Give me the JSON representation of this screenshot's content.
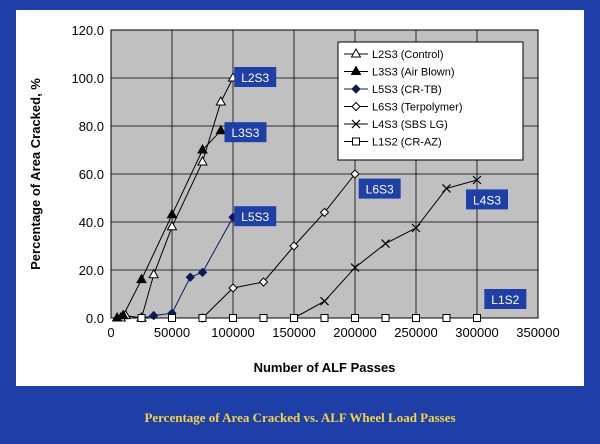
{
  "caption": "Percentage of Area Cracked vs. ALF Wheel Load Passes",
  "chart_data": {
    "type": "line",
    "xlabel": "Number of ALF Passes",
    "ylabel": "Percentage of Area Cracked, %",
    "xlim": [
      0,
      350000
    ],
    "ylim": [
      0,
      120
    ],
    "x_ticks": [
      "0",
      "50000",
      "100000",
      "150000",
      "200000",
      "250000",
      "300000",
      "350000"
    ],
    "y_ticks": [
      "0.0",
      "20.0",
      "40.0",
      "60.0",
      "80.0",
      "100.0",
      "120.0"
    ],
    "grid": true,
    "legend_position": "top-right",
    "plot_background": "#c0c0c0",
    "series": [
      {
        "name": "L2S3 (Control)",
        "marker": "triangle-open",
        "label": "L2S3",
        "points": [
          [
            8000,
            0
          ],
          [
            12000,
            1
          ],
          [
            25000,
            0
          ],
          [
            35000,
            18
          ],
          [
            50000,
            38
          ],
          [
            75000,
            65
          ],
          [
            90000,
            90
          ],
          [
            100000,
            100
          ]
        ]
      },
      {
        "name": "L3S3 (Air Blown)",
        "marker": "triangle-filled",
        "label": "L3S3",
        "points": [
          [
            5000,
            0
          ],
          [
            10000,
            1
          ],
          [
            25000,
            16
          ],
          [
            50000,
            43
          ],
          [
            75000,
            70
          ],
          [
            90000,
            78
          ]
        ]
      },
      {
        "name": "L5S3 (CR-TB)",
        "marker": "diamond-filled",
        "label": "L5S3",
        "points": [
          [
            25000,
            0
          ],
          [
            35000,
            1
          ],
          [
            50000,
            2
          ],
          [
            65000,
            17
          ],
          [
            75000,
            19
          ],
          [
            100000,
            42
          ]
        ]
      },
      {
        "name": "L6S3 (Terpolymer)",
        "marker": "diamond-open",
        "label": "L6S3",
        "points": [
          [
            75000,
            0
          ],
          [
            100000,
            12.5
          ],
          [
            125000,
            15
          ],
          [
            150000,
            30
          ],
          [
            175000,
            44
          ],
          [
            200000,
            60
          ]
        ]
      },
      {
        "name": "L4S3 (SBS LG)",
        "marker": "cross",
        "label": "L4S3",
        "points": [
          [
            150000,
            0
          ],
          [
            175000,
            7
          ],
          [
            200000,
            21
          ],
          [
            225000,
            31
          ],
          [
            250000,
            37.5
          ],
          [
            275000,
            54
          ],
          [
            300000,
            57.5
          ]
        ]
      },
      {
        "name": "L1S2 (CR-AZ)",
        "marker": "square-open",
        "label": "L1S2",
        "points": [
          [
            25000,
            0
          ],
          [
            50000,
            0
          ],
          [
            75000,
            0
          ],
          [
            100000,
            0
          ],
          [
            125000,
            0
          ],
          [
            150000,
            0
          ],
          [
            175000,
            0
          ],
          [
            200000,
            0
          ],
          [
            225000,
            0
          ],
          [
            250000,
            0
          ],
          [
            275000,
            0
          ],
          [
            300000,
            0
          ]
        ]
      }
    ]
  },
  "colors": {
    "slide_background": "#1f3fa8",
    "caption_text": "#f5d442",
    "label_box": "#1f3fa8",
    "label_text": "#ffffff"
  }
}
